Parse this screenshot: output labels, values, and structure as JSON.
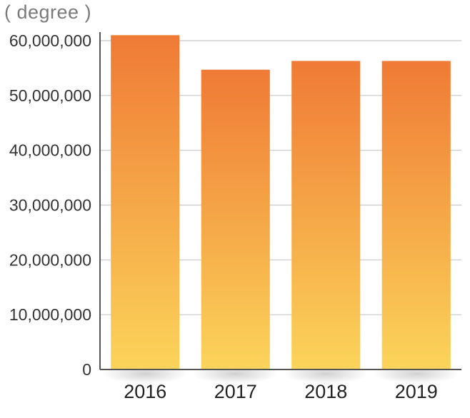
{
  "chart_data": {
    "type": "bar",
    "unit_label": "( degree )",
    "categories": [
      "2016",
      "2017",
      "2018",
      "2019"
    ],
    "values": [
      61000000,
      54700000,
      56300000,
      56300000
    ],
    "ylim": [
      0,
      60000000
    ],
    "y_ticks": [
      0,
      10000000,
      20000000,
      30000000,
      40000000,
      50000000,
      60000000
    ],
    "y_tick_labels": [
      "0",
      "10,000,000",
      "20,000,000",
      "30,000,000",
      "40,000,000",
      "50,000,000",
      "60,000,000"
    ],
    "grid": true,
    "legend": "none",
    "colors": {
      "bar_top": "#ef7a35",
      "bar_bottom": "#fbd45a",
      "grid": "#c8c8c8",
      "axis": "#555555"
    }
  }
}
